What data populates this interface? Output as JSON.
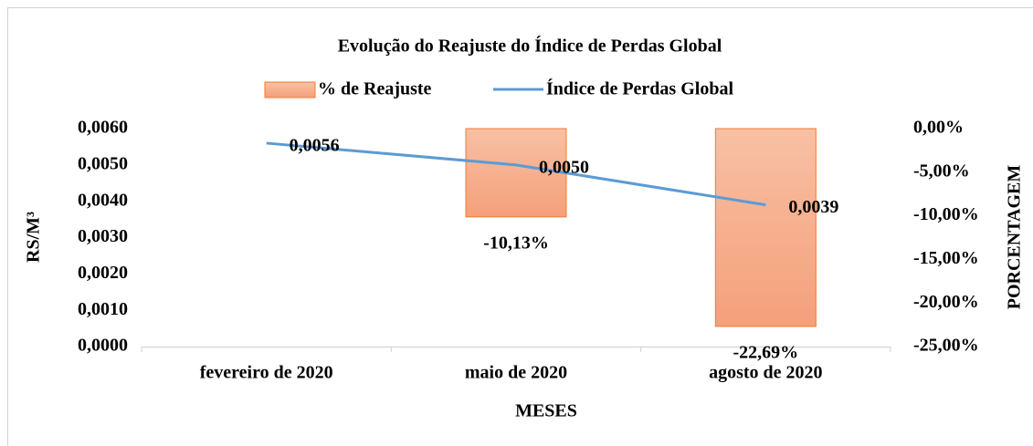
{
  "chart_data": {
    "type": "bar_line",
    "title": "Evolução do Reajuste do Índice de Perdas Global",
    "categories": [
      "fevereiro de 2020",
      "maio de 2020",
      "agosto de 2020"
    ],
    "series": [
      {
        "name": "% de Reajuste",
        "type": "bar",
        "axis": "y2",
        "color": "#f4a582",
        "stroke": "#ed7d31",
        "values": [
          null,
          -10.13,
          -22.69
        ],
        "value_labels": [
          null,
          "-10,13%",
          "-22,69%"
        ]
      },
      {
        "name": "Índice de Perdas Global",
        "type": "line",
        "axis": "y",
        "color": "#5b9bd5",
        "values": [
          0.0056,
          0.005,
          0.0039
        ],
        "value_labels": [
          "0,0056",
          "0,0050",
          "0,0039"
        ]
      }
    ],
    "xlabel": "MESES",
    "ylabel": "RS/M³",
    "y2label": "PORCENTAGEM",
    "ylim": [
      0,
      0.006
    ],
    "yticks": [
      {
        "value": 0,
        "label": "0,0000"
      },
      {
        "value": 0.001,
        "label": "0,0010"
      },
      {
        "value": 0.002,
        "label": "0,0020"
      },
      {
        "value": 0.003,
        "label": "0,0030"
      },
      {
        "value": 0.004,
        "label": "0,0040"
      },
      {
        "value": 0.005,
        "label": "0,0050"
      },
      {
        "value": 0.006,
        "label": "0,0060"
      }
    ],
    "y2lim": [
      -25,
      0
    ],
    "y2ticks": [
      {
        "value": -25,
        "label": "-25,00%"
      },
      {
        "value": -20,
        "label": "-20,00%"
      },
      {
        "value": -15,
        "label": "-15,00%"
      },
      {
        "value": -10,
        "label": "-10,00%"
      },
      {
        "value": -5,
        "label": "-5,00%"
      },
      {
        "value": 0,
        "label": "0,00%"
      }
    ],
    "grid": false,
    "legend": "top"
  }
}
